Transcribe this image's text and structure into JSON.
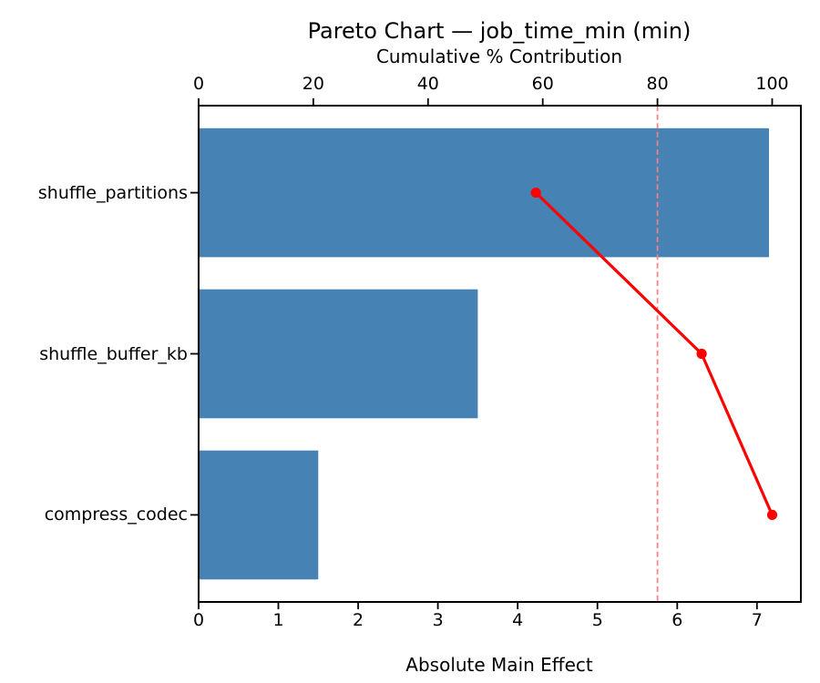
{
  "title": "Pareto Chart — job_time_min (min)",
  "chart_data": {
    "type": "bar",
    "subtype": "pareto-horizontal",
    "title": "Pareto Chart — job_time_min (min)",
    "xlabel_top": "Cumulative % Contribution",
    "xlabel_bottom": "Absolute Main Effect",
    "categories": [
      "shuffle_partitions",
      "shuffle_buffer_kb",
      "compress_codec"
    ],
    "bar_values": [
      7.15,
      3.5,
      1.5
    ],
    "cumulative_pct": [
      58.8,
      87.7,
      100
    ],
    "threshold_pct": 80,
    "top_ticks": [
      0,
      20,
      40,
      60,
      80,
      100
    ],
    "bottom_ticks": [
      0,
      1,
      2,
      3,
      4,
      5,
      6,
      7
    ],
    "xlim_top": [
      0,
      105
    ],
    "xlim_bottom": [
      0,
      7.55
    ],
    "grid": "off",
    "legend": "none",
    "colors": {
      "bar": "#4682B4",
      "line": "#FF0000",
      "marker": "#FF0000",
      "threshold": "#FF7F7F",
      "axis": "#000000",
      "text": "#000000",
      "background": "#FFFFFF"
    }
  }
}
